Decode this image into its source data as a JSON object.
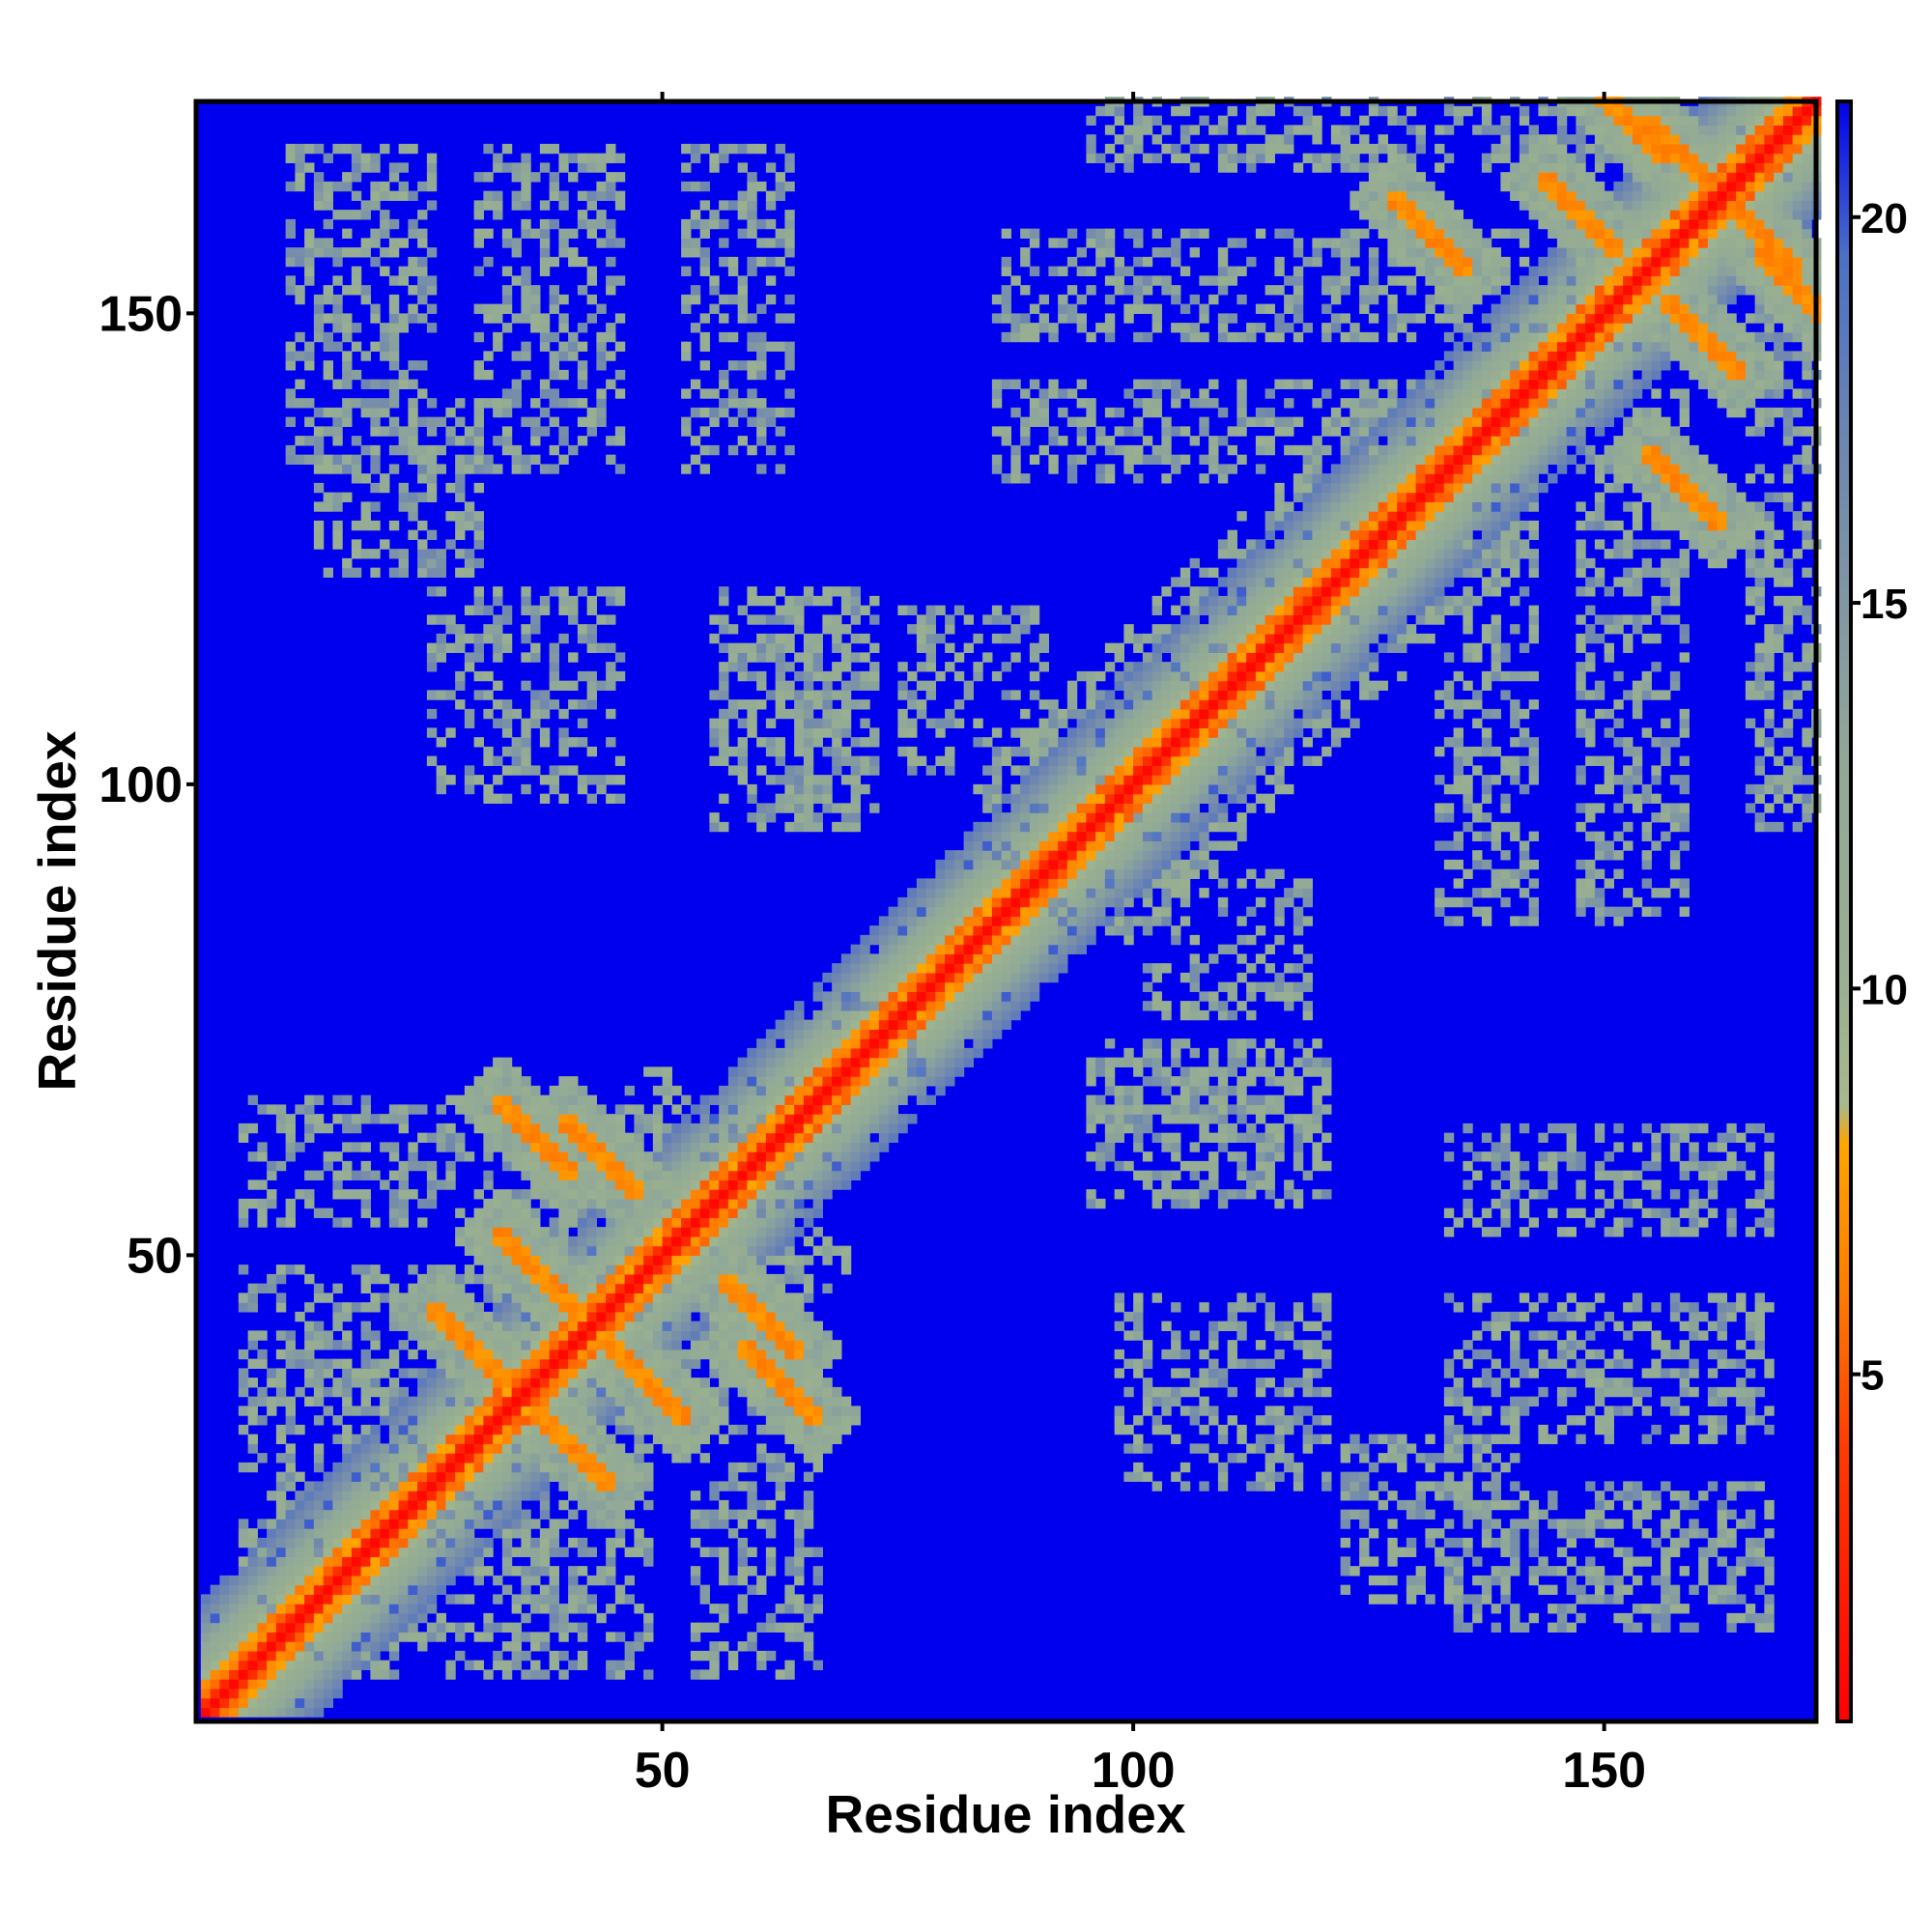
{
  "chart_data": {
    "type": "heatmap",
    "title": "",
    "xlabel": "Residue index",
    "ylabel": "Residue index",
    "x_range": [
      1,
      172
    ],
    "y_range": [
      1,
      172
    ],
    "x_ticks": [
      50,
      100,
      150
    ],
    "y_ticks": [
      50,
      100,
      150
    ],
    "colorbar": {
      "range": [
        0.5,
        21.5
      ],
      "ticks": [
        5,
        10,
        15,
        20
      ],
      "stops": [
        {
          "value": 0.5,
          "color": "#ff0000"
        },
        {
          "value": 4.0,
          "color": "#ff3a00"
        },
        {
          "value": 6.0,
          "color": "#ff7a00"
        },
        {
          "value": 8.0,
          "color": "#ffa500"
        },
        {
          "value": 8.5,
          "color": "#a8b890"
        },
        {
          "value": 10.0,
          "color": "#9ab090"
        },
        {
          "value": 13.0,
          "color": "#90a898"
        },
        {
          "value": 17.0,
          "color": "#6f86b0"
        },
        {
          "value": 19.5,
          "color": "#4a70c8"
        },
        {
          "value": 21.5,
          "color": "#0000ee"
        }
      ]
    },
    "background_value": 21,
    "diagonal_band": {
      "center": 0.8,
      "red_until": 1.5,
      "orange_until": 3.5,
      "green_until": 12
    },
    "value_meaning": "pairwise residue distance",
    "features": [
      {
        "kind": "contact",
        "i": 36,
        "j": 62,
        "value": 6,
        "width": 1.2
      },
      {
        "kind": "contact",
        "i": 60,
        "j": 43,
        "value": 6,
        "width": 1.2
      },
      {
        "kind": "contact",
        "i": 29,
        "j": 40,
        "value": 6,
        "width": 1.0
      },
      {
        "kind": "contact",
        "i": 36,
        "j": 48,
        "value": 6,
        "width": 1.0
      },
      {
        "kind": "contact",
        "i": 131,
        "j": 158,
        "value": 6,
        "width": 1.2
      },
      {
        "kind": "contact",
        "i": 152,
        "j": 170,
        "value": 6,
        "width": 1.2
      },
      {
        "kind": "contact",
        "i": 147,
        "j": 160,
        "value": 6,
        "width": 1.2
      },
      {
        "kind": "contact",
        "i": 158,
        "j": 166,
        "value": 6,
        "width": 1.2
      }
    ],
    "patches": [
      {
        "x": [
          5,
          22
        ],
        "y": [
          7,
          38
        ]
      },
      {
        "x": [
          34,
          48
        ],
        "y": [
          5,
          40
        ]
      },
      {
        "x": [
          53,
          66
        ],
        "y": [
          5,
          35
        ]
      },
      {
        "x": [
          13,
          30
        ],
        "y": [
          122,
          140
        ]
      },
      {
        "x": [
          10,
          25
        ],
        "y": [
          133,
          167
        ]
      },
      {
        "x": [
          30,
          45
        ],
        "y": [
          133,
          167
        ]
      },
      {
        "x": [
          52,
          63
        ],
        "y": [
          133,
          167
        ]
      },
      {
        "x": [
          63,
          70
        ],
        "y": [
          96,
          120
        ]
      },
      {
        "x": [
          98,
          120
        ],
        "y": [
          25,
          45
        ]
      },
      {
        "x": [
          95,
          120
        ],
        "y": [
          55,
          72
        ]
      },
      {
        "x": [
          100,
          118
        ],
        "y": [
          75,
          90
        ]
      },
      {
        "x": [
          132,
          142
        ],
        "y": [
          85,
          142
        ]
      },
      {
        "x": [
          147,
          158
        ],
        "y": [
          85,
          142
        ]
      },
      {
        "x": [
          165,
          172
        ],
        "y": [
          95,
          150
        ]
      }
    ]
  }
}
